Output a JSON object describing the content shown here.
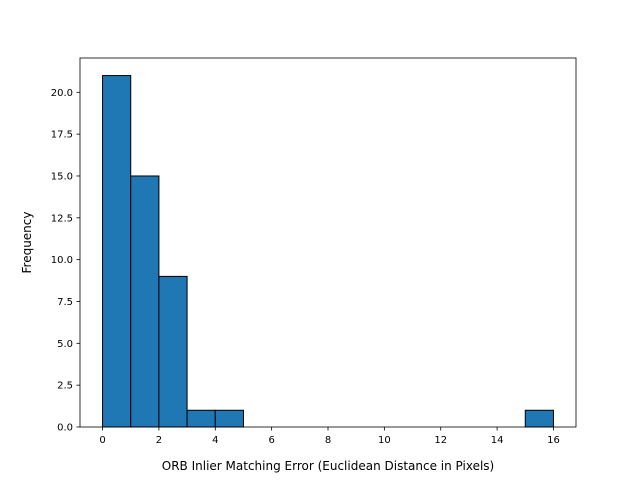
{
  "chart_data": {
    "type": "bar",
    "title": "",
    "xlabel": "ORB Inlier Matching Error (Euclidean Distance in Pixels)",
    "ylabel": "Frequency",
    "xlim": [
      -0.8,
      16.8
    ],
    "ylim": [
      0,
      22.05
    ],
    "x_ticks": [
      0,
      2,
      4,
      6,
      8,
      10,
      12,
      14,
      16
    ],
    "x_tick_labels": [
      "0",
      "2",
      "4",
      "6",
      "8",
      "10",
      "12",
      "14",
      "16"
    ],
    "y_ticks": [
      0,
      2.5,
      5,
      7.5,
      10,
      12.5,
      15,
      17.5,
      20
    ],
    "y_tick_labels": [
      "0.0",
      "2.5",
      "5.0",
      "7.5",
      "10.0",
      "12.5",
      "15.0",
      "17.5",
      "20.0"
    ],
    "bins": [
      {
        "start": 0,
        "end": 1,
        "count": 21
      },
      {
        "start": 1,
        "end": 2,
        "count": 15
      },
      {
        "start": 2,
        "end": 3,
        "count": 9
      },
      {
        "start": 3,
        "end": 4,
        "count": 1
      },
      {
        "start": 4,
        "end": 5,
        "count": 1
      },
      {
        "start": 5,
        "end": 6,
        "count": 0
      },
      {
        "start": 6,
        "end": 7,
        "count": 0
      },
      {
        "start": 7,
        "end": 8,
        "count": 0
      },
      {
        "start": 8,
        "end": 9,
        "count": 0
      },
      {
        "start": 9,
        "end": 10,
        "count": 0
      },
      {
        "start": 10,
        "end": 11,
        "count": 0
      },
      {
        "start": 11,
        "end": 12,
        "count": 0
      },
      {
        "start": 12,
        "end": 13,
        "count": 0
      },
      {
        "start": 13,
        "end": 14,
        "count": 0
      },
      {
        "start": 14,
        "end": 15,
        "count": 0
      },
      {
        "start": 15,
        "end": 16,
        "count": 1
      }
    ],
    "bar_color": "#1f77b4",
    "edge_color": "#000000",
    "grid": false,
    "legend": "none"
  }
}
